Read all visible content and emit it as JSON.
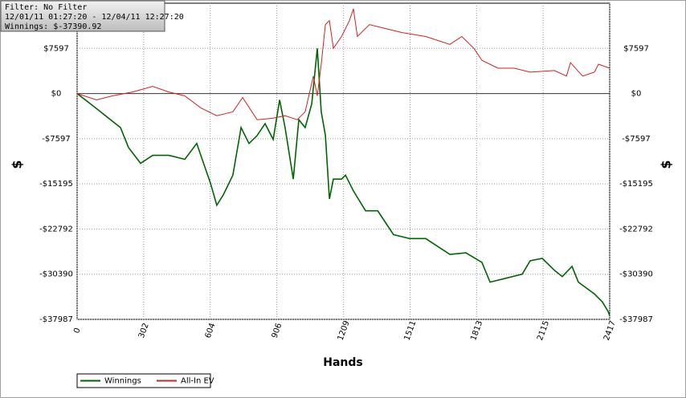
{
  "chart_data": {
    "type": "line",
    "annotations": [
      "Filter: No Filter",
      "12/01/11 01:27:20 - 12/04/11 12:27:20",
      "Winnings: $-37390.92"
    ],
    "x_label": "Hands",
    "y_label": "$",
    "xlim": [
      0,
      2417
    ],
    "xticks": [
      0,
      302,
      604,
      906,
      1209,
      1511,
      1813,
      2115,
      2417
    ],
    "ylim": [
      -37987,
      15195
    ],
    "yticks": [
      {
        "value": 7597,
        "label": "$7597"
      },
      {
        "value": 0,
        "label": "$0"
      },
      {
        "value": -7597,
        "label": "-$7597"
      },
      {
        "value": -15195,
        "label": "-$15195"
      },
      {
        "value": -22792,
        "label": "-$22792"
      },
      {
        "value": -30390,
        "label": "-$30390"
      },
      {
        "value": -37987,
        "label": "-$37987"
      }
    ],
    "grid": true,
    "legend": "bottom-left",
    "series": [
      {
        "name": "Winnings",
        "color": "#006400",
        "x": [
          0,
          51,
          106,
          197,
          233,
          288,
          343,
          416,
          489,
          543,
          580,
          605,
          634,
          663,
          707,
          744,
          780,
          817,
          853,
          890,
          919,
          944,
          981,
          1006,
          1035,
          1065,
          1090,
          1108,
          1127,
          1145,
          1163,
          1200,
          1218,
          1254,
          1309,
          1364,
          1400,
          1436,
          1509,
          1582,
          1637,
          1692,
          1764,
          1837,
          1874,
          1947,
          2020,
          2056,
          2111,
          2166,
          2202,
          2246,
          2275,
          2348,
          2384,
          2410,
          2417
        ],
        "values": [
          0,
          -1466,
          -3066,
          -5732,
          -9064,
          -11730,
          -10397,
          -10397,
          -11064,
          -8398,
          -12397,
          -15063,
          -18795,
          -17062,
          -13730,
          -5732,
          -8398,
          -7065,
          -5066,
          -7731,
          -1066,
          -5732,
          -14396,
          -4399,
          -5732,
          -1733,
          7598,
          -3066,
          -7065,
          -17729,
          -14396,
          -14396,
          -13730,
          -16396,
          -19728,
          -19728,
          -21728,
          -23727,
          -24394,
          -24394,
          -25727,
          -27060,
          -26794,
          -28393,
          -31726,
          -31059,
          -30393,
          -28127,
          -27727,
          -29727,
          -30793,
          -29060,
          -31726,
          -33726,
          -35059,
          -36659,
          -37391
        ]
      },
      {
        "name": "All-In EV",
        "color": "#d42020",
        "x": [
          0,
          88,
          160,
          252,
          343,
          416,
          489,
          561,
          634,
          707,
          751,
          817,
          890,
          944,
          999,
          1035,
          1072,
          1090,
          1108,
          1127,
          1145,
          1163,
          1200,
          1236,
          1254,
          1272,
          1327,
          1400,
          1473,
          1582,
          1692,
          1746,
          1801,
          1837,
          1910,
          1983,
          2056,
          2166,
          2221,
          2239,
          2294,
          2348,
          2366,
          2417
        ],
        "values": [
          0,
          -1066,
          -400,
          267,
          1200,
          267,
          -400,
          -2400,
          -3732,
          -3066,
          -667,
          -4399,
          -4132,
          -3732,
          -4399,
          -3066,
          2933,
          -400,
          4933,
          11598,
          12264,
          7598,
          9597,
          12264,
          14263,
          9597,
          11597,
          10931,
          10264,
          9597,
          8264,
          9597,
          7598,
          5598,
          4265,
          4265,
          3599,
          3866,
          2933,
          5199,
          2933,
          3599,
          4932,
          4266
        ]
      }
    ]
  }
}
